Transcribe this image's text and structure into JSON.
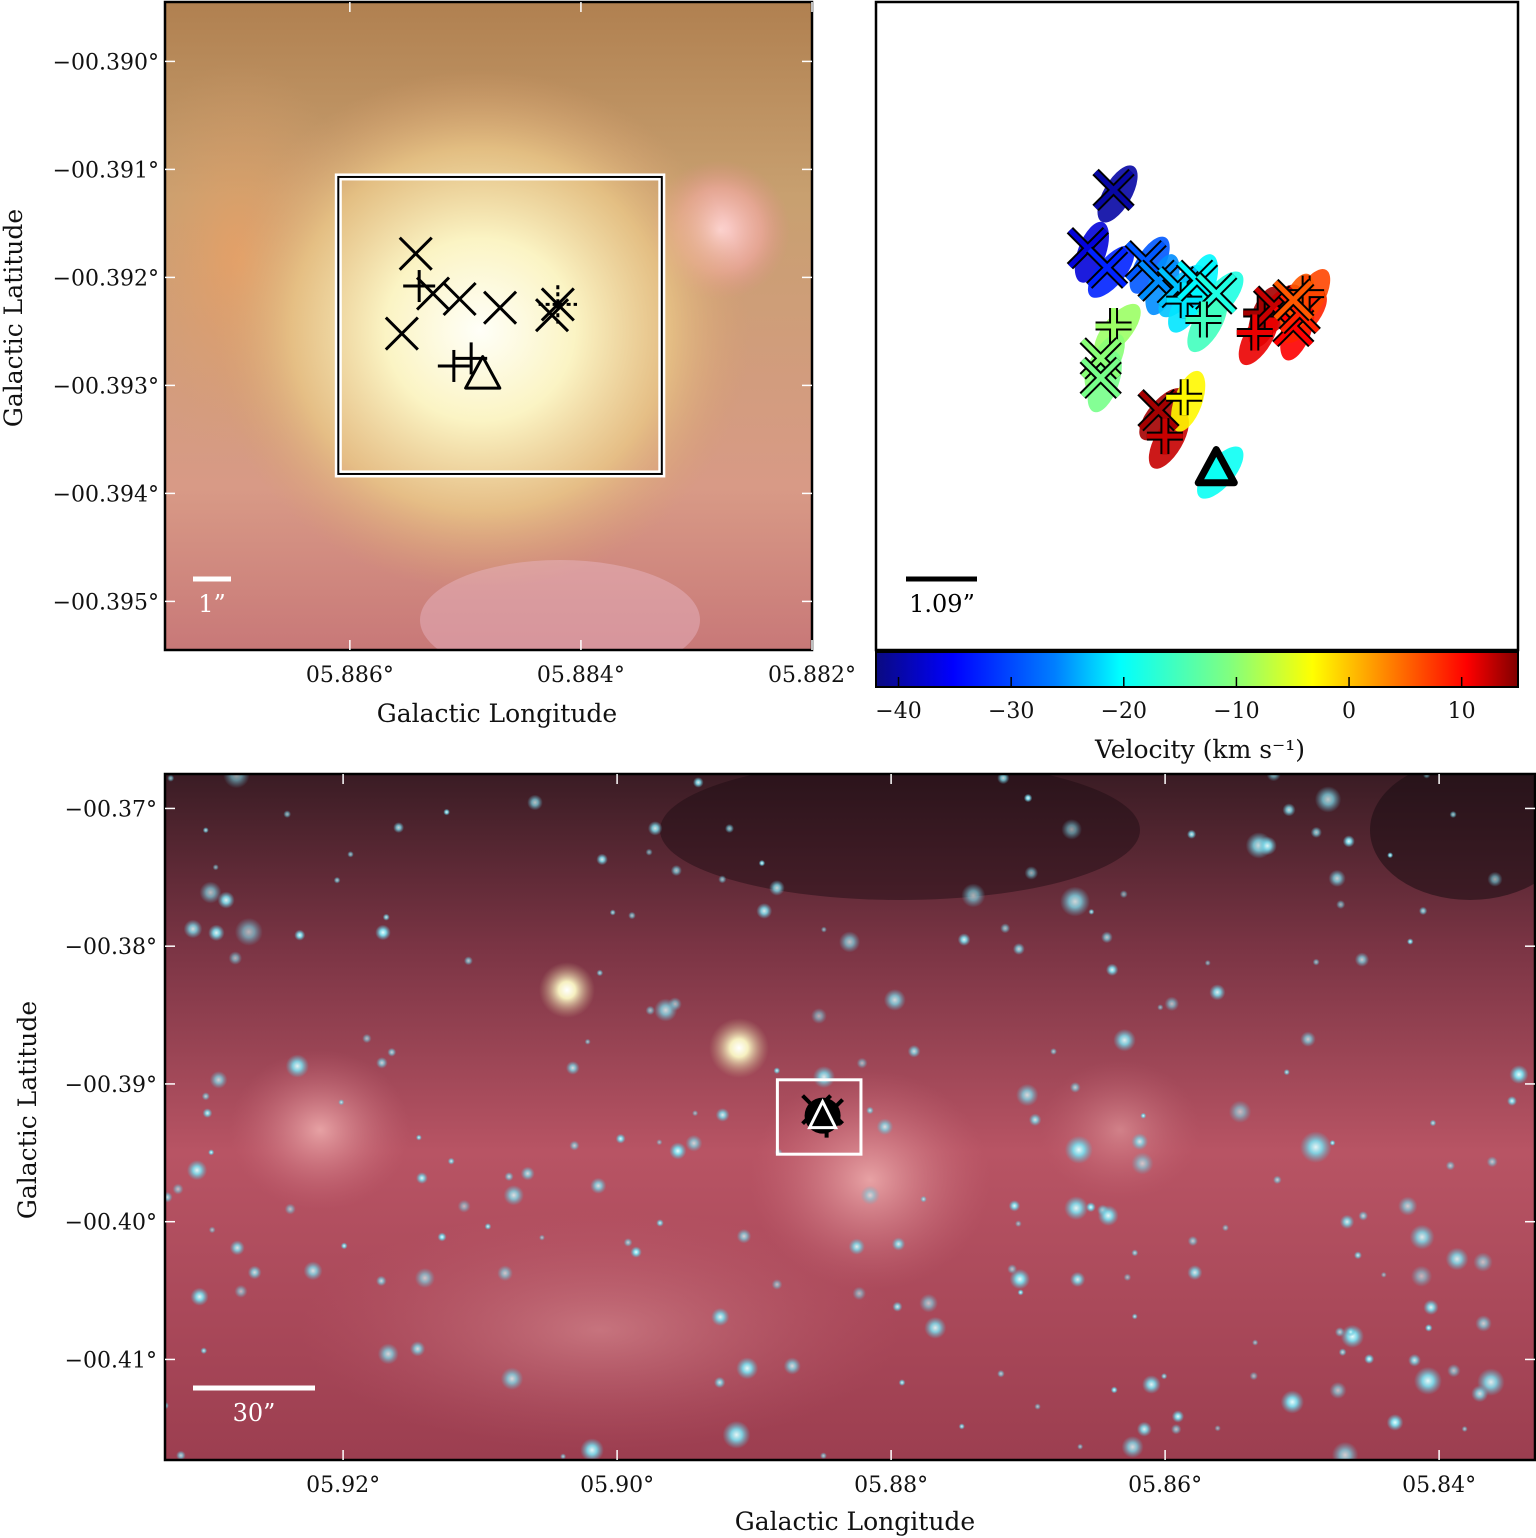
{
  "chart_data": [
    {
      "panel": "top-left",
      "type": "scatter",
      "xlabel": "Galactic Longitude",
      "ylabel": "Galactic Latitude",
      "xlim": [
        5.8876,
        5.882
      ],
      "ylim": [
        -0.39545,
        -0.38945
      ],
      "x_ticks": [
        5.886,
        5.884,
        5.882
      ],
      "x_tick_labels": [
        "05.886°",
        "05.884°",
        "05.882°"
      ],
      "y_ticks": [
        -0.39,
        -0.391,
        -0.392,
        -0.393,
        -0.394,
        -0.395
      ],
      "y_tick_labels": [
        "−00.390°",
        "−00.391°",
        "−00.392°",
        "−00.393°",
        "−00.394°",
        "−00.395°"
      ],
      "scale_bar_label": "1”",
      "box": [
        5.8861,
        -0.39107,
        5.8833,
        -0.39382
      ],
      "markers": [
        {
          "marker": "x",
          "x": 5.88543,
          "y": -0.39178
        },
        {
          "marker": "x",
          "x": 5.88528,
          "y": -0.39215
        },
        {
          "marker": "+",
          "x": 5.8854,
          "y": -0.39208
        },
        {
          "marker": "x",
          "x": 5.88505,
          "y": -0.3922
        },
        {
          "marker": "x",
          "x": 5.8847,
          "y": -0.39228
        },
        {
          "marker": "x",
          "x": 5.88425,
          "y": -0.39235
        },
        {
          "marker": "*",
          "x": 5.8842,
          "y": -0.39225
        },
        {
          "marker": "x",
          "x": 5.88555,
          "y": -0.39252
        },
        {
          "marker": "+",
          "x": 5.88495,
          "y": -0.39275
        },
        {
          "marker": "+",
          "x": 5.8851,
          "y": -0.39282
        },
        {
          "marker": "^",
          "x": 5.88485,
          "y": -0.3929
        }
      ]
    },
    {
      "panel": "top-right",
      "type": "scatter",
      "colorbar_label": "Velocity (km s⁻¹)",
      "colorbar_range": [
        -42,
        15
      ],
      "colorbar_ticks": [
        -40,
        -30,
        -20,
        -10,
        0,
        10
      ],
      "colorbar_tick_labels": [
        "−40",
        "−30",
        "−20",
        "−10",
        "0",
        "10"
      ],
      "colormap": [
        "#0a0a80",
        "#0000ff",
        "#0080ff",
        "#00ffff",
        "#80ff80",
        "#ffff00",
        "#ff8000",
        "#ff0000",
        "#800000"
      ],
      "scale_bar_label": "1.09”",
      "points": [
        {
          "marker": "x",
          "v": -40,
          "x": 0.37,
          "y": 0.29
        },
        {
          "marker": "x",
          "v": -37,
          "x": 0.33,
          "y": 0.38
        },
        {
          "marker": "x",
          "v": -33,
          "x": 0.36,
          "y": 0.41
        },
        {
          "marker": "x",
          "v": -30,
          "x": 0.42,
          "y": 0.4
        },
        {
          "marker": "x",
          "v": -27,
          "x": 0.44,
          "y": 0.43
        },
        {
          "marker": "x",
          "v": -24,
          "x": 0.47,
          "y": 0.44
        },
        {
          "marker": "+",
          "v": -22,
          "x": 0.48,
          "y": 0.46
        },
        {
          "marker": "x",
          "v": -21,
          "x": 0.5,
          "y": 0.43
        },
        {
          "marker": "x",
          "v": -19,
          "x": 0.53,
          "y": 0.45
        },
        {
          "marker": "+",
          "v": -17,
          "x": 0.51,
          "y": 0.49
        },
        {
          "marker": "+",
          "v": 13,
          "x": 0.6,
          "y": 0.48
        },
        {
          "marker": "x",
          "v": 11,
          "x": 0.62,
          "y": 0.47
        },
        {
          "marker": "+",
          "v": 9,
          "x": 0.59,
          "y": 0.51
        },
        {
          "marker": "x",
          "v": 8,
          "x": 0.65,
          "y": 0.5
        },
        {
          "marker": "x",
          "v": 6,
          "x": 0.66,
          "y": 0.48
        },
        {
          "marker": "+",
          "v": 4,
          "x": 0.67,
          "y": 0.45
        },
        {
          "marker": "x",
          "v": 3,
          "x": 0.65,
          "y": 0.46
        },
        {
          "marker": "+",
          "v": -12,
          "x": 0.37,
          "y": 0.5
        },
        {
          "marker": "x",
          "v": -13,
          "x": 0.35,
          "y": 0.55
        },
        {
          "marker": "x",
          "v": -14,
          "x": 0.35,
          "y": 0.58
        },
        {
          "marker": "x",
          "v": 13,
          "x": 0.44,
          "y": 0.63
        },
        {
          "marker": "+",
          "v": 11,
          "x": 0.45,
          "y": 0.67
        },
        {
          "marker": "+",
          "v": -6,
          "x": 0.48,
          "y": 0.61
        },
        {
          "marker": "^",
          "v": -20,
          "x": 0.53,
          "y": 0.72
        }
      ]
    },
    {
      "panel": "bottom",
      "type": "scatter",
      "xlabel": "Galactic Longitude",
      "ylabel": "Galactic Latitude",
      "xlim": [
        5.933,
        5.833
      ],
      "ylim": [
        -0.4173,
        -0.3675
      ],
      "x_ticks": [
        5.92,
        5.9,
        5.88,
        5.86,
        5.84
      ],
      "x_tick_labels": [
        "05.92°",
        "05.90°",
        "05.88°",
        "05.86°",
        "05.84°"
      ],
      "y_ticks": [
        -0.37,
        -0.38,
        -0.39,
        -0.4,
        -0.41
      ],
      "y_tick_labels": [
        "−00.37°",
        "−00.38°",
        "−00.39°",
        "−00.40°",
        "−00.41°"
      ],
      "scale_bar_label": "30”",
      "box": [
        5.8883,
        -0.3897,
        5.8822,
        -0.3951
      ],
      "marker_center": [
        5.885,
        -0.3923
      ]
    }
  ]
}
